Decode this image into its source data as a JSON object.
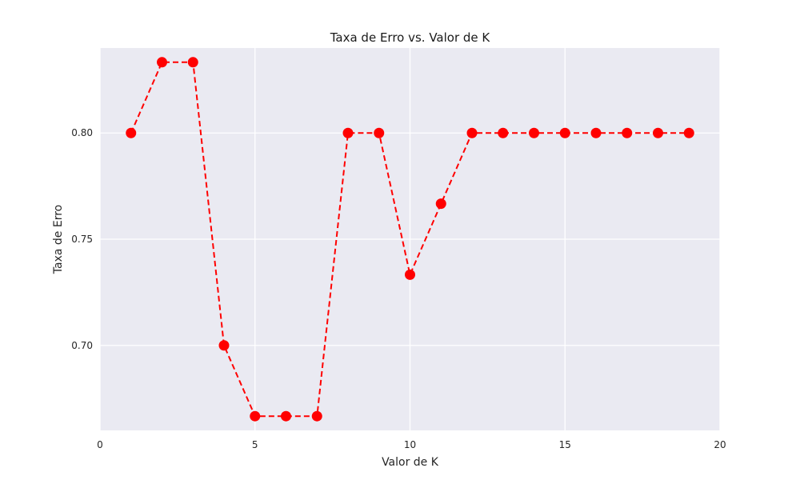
{
  "chart_data": {
    "type": "line",
    "title": "Taxa de Erro vs. Valor de K",
    "xlabel": "Valor de K",
    "ylabel": "Taxa de Erro",
    "x": [
      1,
      2,
      3,
      4,
      5,
      6,
      7,
      8,
      9,
      10,
      11,
      12,
      13,
      14,
      15,
      16,
      17,
      18,
      19
    ],
    "series": [
      {
        "values": [
          0.8,
          0.8333,
          0.8333,
          0.7,
          0.6667,
          0.6667,
          0.6667,
          0.8,
          0.8,
          0.7333,
          0.7667,
          0.8,
          0.8,
          0.8,
          0.8,
          0.8,
          0.8,
          0.8,
          0.8
        ],
        "color": "#ff0000",
        "line_style": "dashed",
        "marker": "circle"
      }
    ],
    "xlim": [
      0,
      20
    ],
    "ylim": [
      0.66,
      0.84
    ],
    "xticks": [
      0,
      5,
      10,
      15,
      20
    ],
    "xtick_labels": [
      "0",
      "5",
      "10",
      "15",
      "20"
    ],
    "yticks": [
      0.7,
      0.75,
      0.8
    ],
    "ytick_labels": [
      "0.70",
      "0.75",
      "0.80"
    ],
    "grid": true,
    "background": "#eaeaf2",
    "grid_color": "#ffffff"
  }
}
